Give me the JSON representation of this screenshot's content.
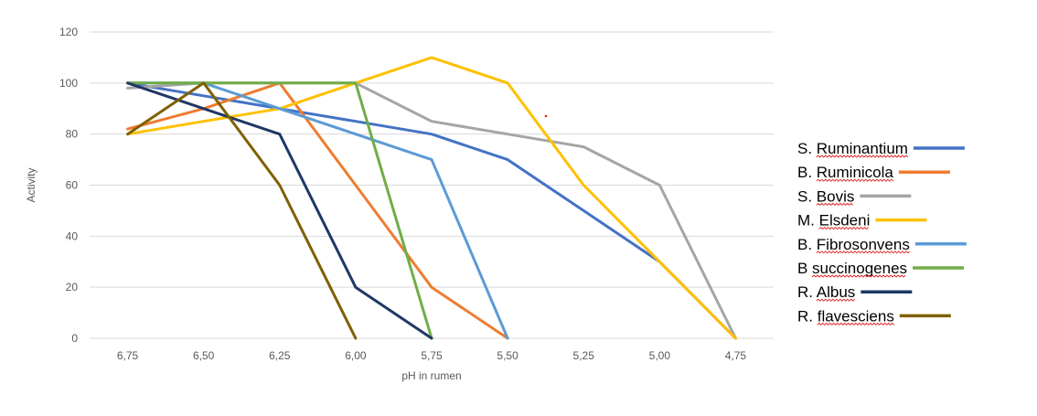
{
  "chart_data": {
    "type": "line",
    "title": "",
    "xlabel": "pH in rumen",
    "ylabel": "Activity",
    "categories": [
      "6,75",
      "6,50",
      "6,25",
      "6,00",
      "5,75",
      "5,50",
      "5,25",
      "5,00",
      "4,75"
    ],
    "y_ticks": [
      "0",
      "20",
      "40",
      "60",
      "80",
      "100",
      "120"
    ],
    "ylim": [
      0,
      120
    ],
    "grid": "horizontal",
    "legend_position": "right",
    "series": [
      {
        "name": "S. Ruminantium",
        "color": "#4472c4",
        "values": [
          100,
          95,
          90,
          85,
          80,
          70,
          50,
          30,
          0
        ]
      },
      {
        "name": "B. Ruminicola",
        "color": "#ed7d31",
        "values": [
          82,
          90,
          100,
          60,
          20,
          0,
          null,
          null,
          null
        ]
      },
      {
        "name": "S. Bovis",
        "color": "#a5a5a5",
        "values": [
          98,
          100,
          100,
          100,
          85,
          80,
          75,
          60,
          0
        ]
      },
      {
        "name": "M. Elsdeni",
        "color": "#ffc000",
        "values": [
          80,
          85,
          90,
          100,
          110,
          100,
          60,
          30,
          0
        ]
      },
      {
        "name": "B. Fibrosonvens",
        "color": "#5b9bd5",
        "values": [
          100,
          100,
          90,
          80,
          70,
          0,
          null,
          null,
          null
        ]
      },
      {
        "name": "B succinogenes",
        "color": "#70ad47",
        "values": [
          100,
          100,
          100,
          100,
          0,
          null,
          null,
          null,
          null
        ]
      },
      {
        "name": "R. Albus",
        "color": "#1f3864",
        "values": [
          100,
          90,
          80,
          20,
          0,
          null,
          null,
          null,
          null
        ]
      },
      {
        "name": "R. flavesciens",
        "color": "#7f6000",
        "values": [
          80,
          100,
          60,
          0,
          null,
          null,
          null,
          null,
          null
        ]
      }
    ]
  }
}
